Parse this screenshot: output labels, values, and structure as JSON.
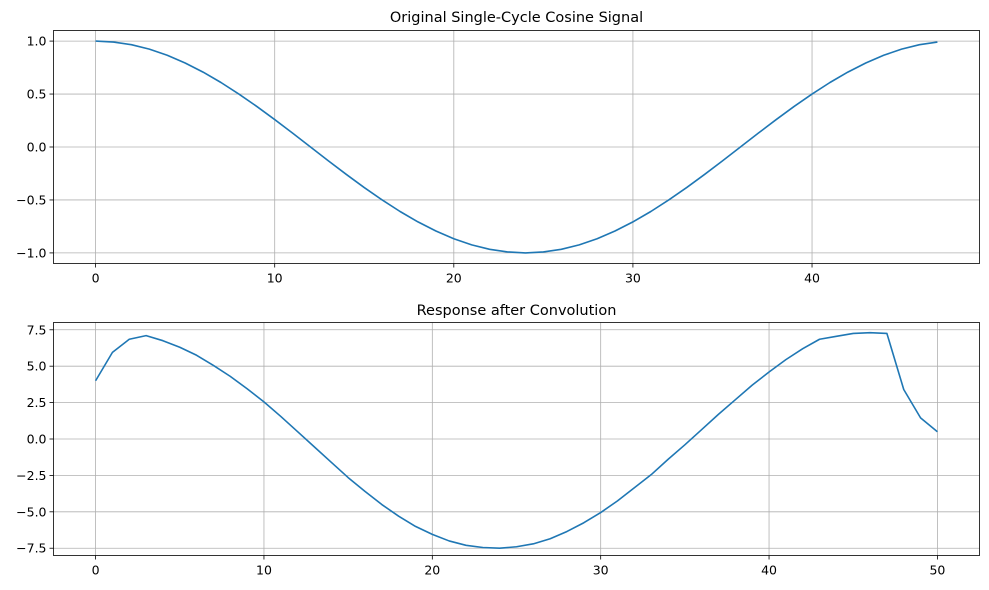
{
  "chart_data": [
    {
      "type": "line",
      "title": "Original Single-Cycle Cosine Signal",
      "xlabel": "",
      "ylabel": "",
      "xlim": [
        -2.35,
        49.35
      ],
      "ylim": [
        -1.1,
        1.1
      ],
      "xticks": [
        0,
        10,
        20,
        30,
        40
      ],
      "xtick_labels": [
        "0",
        "10",
        "20",
        "30",
        "40"
      ],
      "yticks": [
        1.0,
        0.5,
        0.0,
        -0.5,
        -1.0
      ],
      "ytick_labels": [
        "1.0",
        "0.5",
        "0.0",
        "−0.5",
        "−1.0"
      ],
      "grid": true,
      "series": [
        {
          "color": "#1f77b4",
          "x": [
            0,
            1,
            2,
            3,
            4,
            5,
            6,
            7,
            8,
            9,
            10,
            11,
            12,
            13,
            14,
            15,
            16,
            17,
            18,
            19,
            20,
            21,
            22,
            23,
            24,
            25,
            26,
            27,
            28,
            29,
            30,
            31,
            32,
            33,
            34,
            35,
            36,
            37,
            38,
            39,
            40,
            41,
            42,
            43,
            44,
            45,
            46,
            47
          ],
          "y": [
            1.0,
            0.991,
            0.966,
            0.924,
            0.866,
            0.793,
            0.707,
            0.609,
            0.5,
            0.383,
            0.259,
            0.131,
            0.0,
            -0.131,
            -0.259,
            -0.383,
            -0.5,
            -0.609,
            -0.707,
            -0.793,
            -0.866,
            -0.924,
            -0.966,
            -0.991,
            -1.0,
            -0.991,
            -0.966,
            -0.924,
            -0.866,
            -0.793,
            -0.707,
            -0.609,
            -0.5,
            -0.383,
            -0.259,
            -0.131,
            0.0,
            0.131,
            0.259,
            0.383,
            0.5,
            0.609,
            0.707,
            0.793,
            0.866,
            0.924,
            0.966,
            0.991
          ]
        }
      ]
    },
    {
      "type": "line",
      "title": "Response after Convolution",
      "xlabel": "",
      "ylabel": "",
      "xlim": [
        -2.5,
        52.5
      ],
      "ylim": [
        -8.0,
        8.0
      ],
      "xticks": [
        0,
        10,
        20,
        30,
        40,
        50
      ],
      "xtick_labels": [
        "0",
        "10",
        "20",
        "30",
        "40",
        "50"
      ],
      "yticks": [
        7.5,
        5.0,
        2.5,
        0.0,
        -2.5,
        -5.0,
        -7.5
      ],
      "ytick_labels": [
        "7.5",
        "5.0",
        "2.5",
        "0.0",
        "−2.5",
        "−5.0",
        "−7.5"
      ],
      "grid": true,
      "series": [
        {
          "color": "#1f77b4",
          "x": [
            0,
            1,
            2,
            3,
            4,
            5,
            6,
            7,
            8,
            9,
            10,
            11,
            12,
            13,
            14,
            15,
            16,
            17,
            18,
            19,
            20,
            21,
            22,
            23,
            24,
            25,
            26,
            27,
            28,
            29,
            30,
            31,
            32,
            33,
            34,
            35,
            36,
            37,
            38,
            39,
            40,
            41,
            42,
            43,
            44,
            45,
            46,
            47,
            48,
            49,
            50
          ],
          "y": [
            4.0,
            5.95,
            6.85,
            7.1,
            6.75,
            6.3,
            5.75,
            5.05,
            4.3,
            3.45,
            2.55,
            1.55,
            0.5,
            -0.55,
            -1.6,
            -2.65,
            -3.6,
            -4.5,
            -5.3,
            -6.0,
            -6.55,
            -7.0,
            -7.3,
            -7.45,
            -7.5,
            -7.4,
            -7.2,
            -6.85,
            -6.35,
            -5.75,
            -5.05,
            -4.25,
            -3.35,
            -2.45,
            -1.4,
            -0.4,
            0.65,
            1.7,
            2.7,
            3.7,
            4.6,
            5.45,
            6.2,
            6.85,
            7.05,
            7.25,
            7.3,
            7.25,
            3.4,
            1.45,
            0.5
          ]
        }
      ]
    }
  ]
}
